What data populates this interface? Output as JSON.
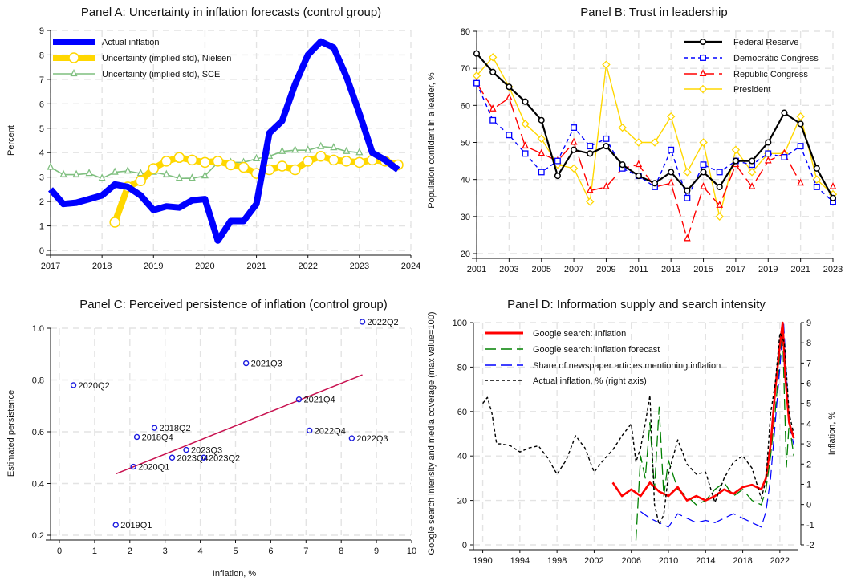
{
  "panels": {
    "A": {
      "title": "Panel A: Uncertainty in inflation forecasts (control group)",
      "ylabel": "Percent",
      "xlabel": ""
    },
    "B": {
      "title": "Panel B: Trust in leadership",
      "ylabel": "Population confident in a leader, %",
      "xlabel": ""
    },
    "C": {
      "title": "Panel C: Perceived persistence of inflation (control group)",
      "ylabel": "Estimated persistence",
      "xlabel": "Inflation, %"
    },
    "D": {
      "title": "Panel D: Information supply and search intensity",
      "ylabel": "Google search intensity and media coverage (max value=100)",
      "ylabel_right": "Inflation, %",
      "xlabel": ""
    }
  },
  "chart_data": [
    {
      "type": "line",
      "title": "Panel A: Uncertainty in inflation forecasts (control group)",
      "ylabel": "Percent",
      "xlim": [
        2017,
        2024
      ],
      "ylim": [
        0,
        9
      ],
      "xticks": [
        2017,
        2018,
        2019,
        2020,
        2021,
        2022,
        2023,
        2024
      ],
      "yticks": [
        0,
        1,
        2,
        3,
        4,
        5,
        6,
        7,
        8,
        9
      ],
      "grid": true,
      "legend": "top-left",
      "series": [
        {
          "name": "Actual inflation",
          "color": "#0000ff",
          "marker": "none",
          "x": [
            2017.0,
            2017.25,
            2017.5,
            2017.75,
            2018.0,
            2018.25,
            2018.5,
            2018.75,
            2019.0,
            2019.25,
            2019.5,
            2019.75,
            2020.0,
            2020.25,
            2020.5,
            2020.75,
            2021.0,
            2021.25,
            2021.5,
            2021.75,
            2022.0,
            2022.25,
            2022.5,
            2022.75,
            2023.0,
            2023.25,
            2023.5,
            2023.75
          ],
          "y": [
            2.5,
            1.9,
            1.95,
            2.1,
            2.25,
            2.7,
            2.6,
            2.25,
            1.65,
            1.8,
            1.75,
            2.05,
            2.1,
            0.4,
            1.2,
            1.2,
            1.9,
            4.8,
            5.3,
            6.8,
            8.0,
            8.55,
            8.3,
            7.1,
            5.6,
            4.0,
            3.7,
            3.3
          ]
        },
        {
          "name": "Uncertainty (implied std), Nielsen",
          "color": "#ffd700",
          "marker": "circle",
          "x": [
            2018.25,
            2018.5,
            2018.75,
            2019.0,
            2019.25,
            2019.5,
            2019.75,
            2020.0,
            2020.25,
            2020.5,
            2020.75,
            2021.0,
            2021.25,
            2021.5,
            2021.75,
            2022.0,
            2022.25,
            2022.5,
            2022.75,
            2023.0,
            2023.25,
            2023.5,
            2023.75
          ],
          "y": [
            1.15,
            2.6,
            2.85,
            3.35,
            3.65,
            3.8,
            3.7,
            3.6,
            3.65,
            3.5,
            3.4,
            3.15,
            3.3,
            3.45,
            3.3,
            3.65,
            3.85,
            3.7,
            3.65,
            3.6,
            3.7,
            3.65,
            3.5
          ]
        },
        {
          "name": "Uncertainty (implied std), SCE",
          "color": "#7fbf7f",
          "marker": "triangle",
          "x": [
            2017.0,
            2017.25,
            2017.5,
            2017.75,
            2018.0,
            2018.25,
            2018.5,
            2018.75,
            2019.0,
            2019.25,
            2019.5,
            2019.75,
            2020.0,
            2020.25,
            2020.5,
            2020.75,
            2021.0,
            2021.25,
            2021.5,
            2021.75,
            2022.0,
            2022.25,
            2022.5,
            2022.75,
            2023.0
          ],
          "y": [
            3.4,
            3.1,
            3.1,
            3.15,
            2.95,
            3.2,
            3.25,
            3.15,
            3.2,
            3.1,
            2.95,
            2.95,
            3.05,
            3.6,
            3.6,
            3.6,
            3.75,
            3.85,
            4.05,
            4.1,
            4.1,
            4.25,
            4.2,
            4.05,
            4.0
          ]
        }
      ]
    },
    {
      "type": "line",
      "title": "Panel B: Trust in leadership",
      "ylabel": "Population confident in a leader, %",
      "xlim": [
        2001,
        2023
      ],
      "ylim": [
        20,
        80
      ],
      "xticks": [
        2001,
        2003,
        2005,
        2007,
        2009,
        2011,
        2013,
        2015,
        2017,
        2019,
        2021,
        2023
      ],
      "yticks": [
        20,
        30,
        40,
        50,
        60,
        70,
        80
      ],
      "grid": true,
      "legend": "top-right",
      "series": [
        {
          "name": "Federal Reserve",
          "color": "#000000",
          "marker": "circle",
          "x": [
            2001,
            2002,
            2003,
            2004,
            2005,
            2006,
            2007,
            2008,
            2009,
            2010,
            2011,
            2012,
            2013,
            2014,
            2015,
            2016,
            2017,
            2018,
            2019,
            2020,
            2021,
            2022,
            2023
          ],
          "y": [
            74,
            69,
            65,
            61,
            56,
            41,
            48,
            47,
            49,
            44,
            41,
            39,
            42,
            37,
            42,
            38,
            45,
            45,
            50,
            58,
            55,
            43,
            35
          ]
        },
        {
          "name": "Democratic Congress",
          "color": "#0000ff",
          "marker": "square",
          "x": [
            2001,
            2002,
            2003,
            2004,
            2005,
            2006,
            2007,
            2008,
            2009,
            2010,
            2011,
            2012,
            2013,
            2014,
            2015,
            2016,
            2017,
            2018,
            2019,
            2020,
            2021,
            2022,
            2023
          ],
          "y": [
            66,
            56,
            52,
            47,
            42,
            45,
            54,
            49,
            51,
            43,
            41,
            38,
            48,
            35,
            44,
            42,
            45,
            44,
            47,
            46,
            49,
            38,
            34
          ]
        },
        {
          "name": "Republic Congress",
          "color": "#ff0000",
          "marker": "triangle",
          "x": [
            2001,
            2002,
            2003,
            2004,
            2005,
            2006,
            2007,
            2008,
            2009,
            2010,
            2011,
            2012,
            2013,
            2014,
            2015,
            2016,
            2017,
            2018,
            2019,
            2020,
            2021,
            2022,
            2023
          ],
          "y": [
            66,
            59,
            62,
            49,
            47,
            45,
            50,
            37,
            38,
            43,
            44,
            38,
            39,
            24,
            38,
            33,
            44,
            38,
            45,
            47,
            39,
            null,
            38
          ]
        },
        {
          "name": "President",
          "color": "#ffd700",
          "marker": "diamond",
          "x": [
            2001,
            2002,
            2003,
            2004,
            2005,
            2006,
            2007,
            2008,
            2009,
            2010,
            2011,
            2012,
            2013,
            2014,
            2015,
            2016,
            2017,
            2018,
            2019,
            2020,
            2021,
            2022,
            2023
          ],
          "y": [
            68,
            73,
            65,
            55,
            51,
            44,
            43,
            34,
            71,
            54,
            50,
            50,
            57,
            42,
            50,
            30,
            48,
            42,
            47,
            47,
            57,
            40,
            36
          ]
        }
      ]
    },
    {
      "type": "scatter",
      "title": "Panel C: Perceived persistence of inflation (control group)",
      "xlabel": "Inflation, %",
      "ylabel": "Estimated persistence",
      "xlim": [
        0,
        10
      ],
      "ylim": [
        0.2,
        1.0
      ],
      "xticks": [
        0,
        1,
        2,
        3,
        4,
        5,
        6,
        7,
        8,
        9,
        10
      ],
      "yticks": [
        0.2,
        0.4,
        0.6,
        0.8,
        1.0
      ],
      "grid": true,
      "points": [
        {
          "label": "2019Q1",
          "x": 1.6,
          "y": 0.24
        },
        {
          "label": "2020Q2",
          "x": 0.4,
          "y": 0.78
        },
        {
          "label": "2018Q2",
          "x": 2.7,
          "y": 0.615
        },
        {
          "label": "2018Q4",
          "x": 2.2,
          "y": 0.58
        },
        {
          "label": "2020Q1",
          "x": 2.1,
          "y": 0.465
        },
        {
          "label": "2023Q4",
          "x": 3.2,
          "y": 0.5
        },
        {
          "label": "2023Q3",
          "x": 3.6,
          "y": 0.53
        },
        {
          "label": "2023Q2",
          "x": 4.1,
          "y": 0.5
        },
        {
          "label": "2021Q3",
          "x": 5.3,
          "y": 0.865
        },
        {
          "label": "2021Q4",
          "x": 6.8,
          "y": 0.725
        },
        {
          "label": "2022Q4",
          "x": 7.1,
          "y": 0.605
        },
        {
          "label": "2022Q3",
          "x": 8.3,
          "y": 0.575
        },
        {
          "label": "2022Q2",
          "x": 8.6,
          "y": 1.025
        }
      ],
      "fit_line": {
        "x": [
          1.6,
          8.6
        ],
        "y": [
          0.437,
          0.82
        ],
        "color": "#c8104f"
      }
    },
    {
      "type": "line",
      "title": "Panel D: Information supply and search intensity",
      "ylabel": "Google search intensity and media coverage (max value=100)",
      "ylabel_right": "Inflation, %",
      "xlim": [
        1989,
        2024
      ],
      "ylim": [
        0,
        100
      ],
      "ylim_right": [
        -2,
        9
      ],
      "xticks": [
        1990,
        1994,
        1998,
        2002,
        2006,
        2010,
        2014,
        2018,
        2022
      ],
      "yticks": [
        0,
        20,
        40,
        60,
        80,
        100
      ],
      "yticks_right": [
        -2,
        -1,
        0,
        1,
        2,
        3,
        4,
        5,
        6,
        7,
        8,
        9
      ],
      "grid": true,
      "legend": "top-left",
      "series": [
        {
          "name": "Google search: Inflation",
          "color": "#ff0000",
          "axis": "left",
          "x": [
            2004,
            2005,
            2006,
            2007,
            2008,
            2009,
            2010,
            2011,
            2012,
            2013,
            2014,
            2015,
            2016,
            2017,
            2018,
            2019,
            2020,
            2020.5,
            2021,
            2021.5,
            2022,
            2022.3,
            2022.6,
            2023,
            2023.5
          ],
          "y": [
            28,
            22,
            25,
            22,
            28,
            24,
            22,
            26,
            20,
            22,
            20,
            22,
            25,
            23,
            26,
            27,
            25,
            30,
            45,
            70,
            90,
            100,
            75,
            55,
            48
          ]
        },
        {
          "name": "Google search: Inflation forecast",
          "color": "#008000",
          "axis": "left",
          "x": [
            2006.5,
            2007,
            2007.5,
            2008,
            2008.5,
            2009,
            2009.5,
            2010,
            2011,
            2012,
            2013,
            2014,
            2015,
            2016,
            2017,
            2018,
            2019,
            2020,
            2020.5,
            2021,
            2021.5,
            2022,
            2022.3,
            2022.7,
            2023,
            2023.5
          ],
          "y": [
            2,
            40,
            30,
            55,
            25,
            62,
            22,
            38,
            25,
            22,
            18,
            20,
            25,
            28,
            22,
            25,
            20,
            18,
            25,
            40,
            60,
            85,
            95,
            35,
            55,
            40
          ]
        },
        {
          "name": "Share of newspaper articles mentioning inflation",
          "color": "#0000ff",
          "axis": "left",
          "x": [
            2007,
            2008,
            2009,
            2010,
            2011,
            2012,
            2013,
            2014,
            2015,
            2016,
            2017,
            2018,
            2019,
            2020,
            2020.5,
            2021,
            2021.5,
            2022,
            2022.4,
            2022.8,
            2023,
            2023.5
          ],
          "y": [
            15,
            12,
            10,
            8,
            14,
            12,
            10,
            11,
            10,
            12,
            14,
            12,
            10,
            8,
            15,
            30,
            55,
            80,
            100,
            70,
            55,
            45
          ]
        },
        {
          "name": "Actual inflation, % (right axis)",
          "color": "#000000",
          "axis": "right",
          "x": [
            1990,
            1990.5,
            1991,
            1991.5,
            1992,
            1993,
            1994,
            1995,
            1996,
            1997,
            1998,
            1999,
            2000,
            2001,
            2002,
            2003,
            2004,
            2005,
            2006,
            2006.5,
            2007,
            2007.5,
            2008,
            2008.5,
            2009,
            2009.5,
            2010,
            2011,
            2012,
            2013,
            2014,
            2015,
            2016,
            2017,
            2018,
            2019,
            2020,
            2020.5,
            2021,
            2021.5,
            2022,
            2022.5,
            2023,
            2023.5
          ],
          "y": [
            5.0,
            5.3,
            4.5,
            3.0,
            3.0,
            2.9,
            2.6,
            2.8,
            2.9,
            2.3,
            1.5,
            2.2,
            3.4,
            2.8,
            1.6,
            2.2,
            2.7,
            3.4,
            4.0,
            2.1,
            2.8,
            4.0,
            5.4,
            0.0,
            -1.0,
            -0.5,
            1.5,
            3.2,
            2.0,
            1.5,
            1.6,
            0.1,
            1.3,
            2.1,
            2.4,
            1.8,
            0.3,
            1.2,
            4.5,
            6.0,
            8.5,
            8.0,
            4.5,
            3.5
          ]
        }
      ]
    }
  ]
}
